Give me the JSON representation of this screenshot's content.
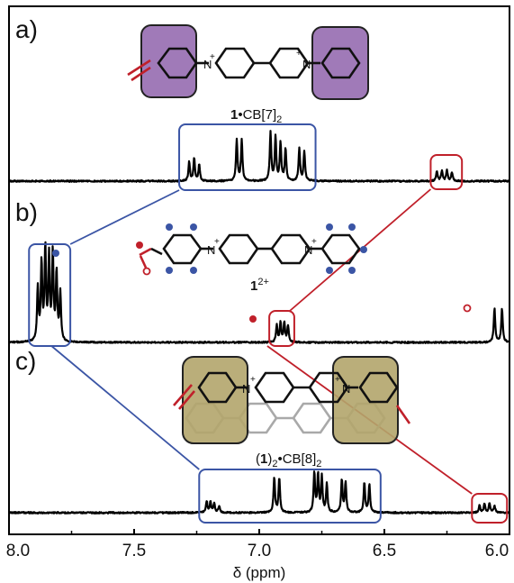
{
  "figure": {
    "panels": [
      {
        "id": "a",
        "label": "a)",
        "complex_bold": "1",
        "complex_rest": "•CB[7]",
        "complex_sub": "2",
        "host_color": "#9b6bb7"
      },
      {
        "id": "b",
        "label": "b)",
        "complex_bold": "1",
        "complex_rest": "",
        "complex_sup": "2+"
      },
      {
        "id": "c",
        "label": "c)",
        "complex_pre": "(",
        "complex_bold": "1",
        "complex_mid": ")",
        "complex_sub1": "2",
        "complex_rest": "•CB[8]",
        "complex_sub": "2",
        "host_color": "#b8ab74"
      }
    ],
    "nitrogen_label": "N",
    "charge_label": "+",
    "colors": {
      "spectrum": "#000000",
      "aromatic_box": "#3b55a5",
      "aldehyde_box": "#c0202a",
      "marker_blue": "#3b55a5",
      "marker_red": "#c0202a"
    }
  },
  "chart_data": {
    "type": "line",
    "xlabel": "δ (ppm)",
    "x_ticks": [
      "8.0",
      "7.5",
      "7.0",
      "6.5",
      "6.0"
    ],
    "xlim": [
      8.0,
      6.0
    ],
    "x_reversed": true,
    "series": [
      {
        "panel": "a",
        "peaks": [
          {
            "ppm": 7.28,
            "h": 0.35
          },
          {
            "ppm": 7.26,
            "h": 0.42
          },
          {
            "ppm": 7.24,
            "h": 0.3
          },
          {
            "ppm": 7.09,
            "h": 0.75
          },
          {
            "ppm": 7.07,
            "h": 0.75
          },
          {
            "ppm": 6.955,
            "h": 0.9
          },
          {
            "ppm": 6.935,
            "h": 0.8
          },
          {
            "ppm": 6.915,
            "h": 0.7
          },
          {
            "ppm": 6.895,
            "h": 0.6
          },
          {
            "ppm": 6.84,
            "h": 0.6
          },
          {
            "ppm": 6.82,
            "h": 0.55
          },
          {
            "ppm": 6.29,
            "h": 0.18
          },
          {
            "ppm": 6.27,
            "h": 0.2
          },
          {
            "ppm": 6.25,
            "h": 0.2
          },
          {
            "ppm": 6.23,
            "h": 0.16
          }
        ]
      },
      {
        "panel": "b",
        "peaks": [
          {
            "ppm": 7.885,
            "h": 0.55
          },
          {
            "ppm": 7.87,
            "h": 0.8
          },
          {
            "ppm": 7.855,
            "h": 0.95
          },
          {
            "ppm": 7.84,
            "h": 0.85
          },
          {
            "ppm": 7.825,
            "h": 0.9
          },
          {
            "ppm": 7.81,
            "h": 0.7
          },
          {
            "ppm": 7.795,
            "h": 0.5
          },
          {
            "ppm": 6.93,
            "h": 0.18
          },
          {
            "ppm": 6.915,
            "h": 0.2
          },
          {
            "ppm": 6.9,
            "h": 0.2
          },
          {
            "ppm": 6.885,
            "h": 0.17
          },
          {
            "ppm": 6.06,
            "h": 0.35
          },
          {
            "ppm": 6.03,
            "h": 0.35
          }
        ]
      },
      {
        "panel": "c",
        "peaks": [
          {
            "ppm": 7.21,
            "h": 0.25
          },
          {
            "ppm": 7.195,
            "h": 0.22
          },
          {
            "ppm": 7.18,
            "h": 0.2
          },
          {
            "ppm": 7.16,
            "h": 0.15
          },
          {
            "ppm": 6.94,
            "h": 0.75
          },
          {
            "ppm": 6.92,
            "h": 0.75
          },
          {
            "ppm": 6.78,
            "h": 0.85
          },
          {
            "ppm": 6.765,
            "h": 0.8
          },
          {
            "ppm": 6.75,
            "h": 0.75
          },
          {
            "ppm": 6.73,
            "h": 0.6
          },
          {
            "ppm": 6.67,
            "h": 0.7
          },
          {
            "ppm": 6.655,
            "h": 0.65
          },
          {
            "ppm": 6.58,
            "h": 0.65
          },
          {
            "ppm": 6.56,
            "h": 0.6
          },
          {
            "ppm": 6.12,
            "h": 0.16
          },
          {
            "ppm": 6.1,
            "h": 0.19
          },
          {
            "ppm": 6.08,
            "h": 0.19
          },
          {
            "ppm": 6.06,
            "h": 0.15
          }
        ]
      }
    ],
    "highlight_regions": [
      {
        "panel": "a",
        "ppm": [
          7.32,
          6.775
        ],
        "group": "aromatic"
      },
      {
        "panel": "a",
        "ppm": [
          6.315,
          6.19
        ],
        "group": "aldehyde"
      },
      {
        "panel": "b",
        "ppm": [
          7.92,
          7.755
        ],
        "group": "aromatic"
      },
      {
        "panel": "b",
        "ppm": [
          6.96,
          6.86
        ],
        "group": "aldehyde"
      },
      {
        "panel": "c",
        "ppm": [
          7.24,
          6.515
        ],
        "group": "aromatic"
      },
      {
        "panel": "c",
        "ppm": [
          6.15,
          6.01
        ],
        "group": "aldehyde"
      }
    ]
  }
}
